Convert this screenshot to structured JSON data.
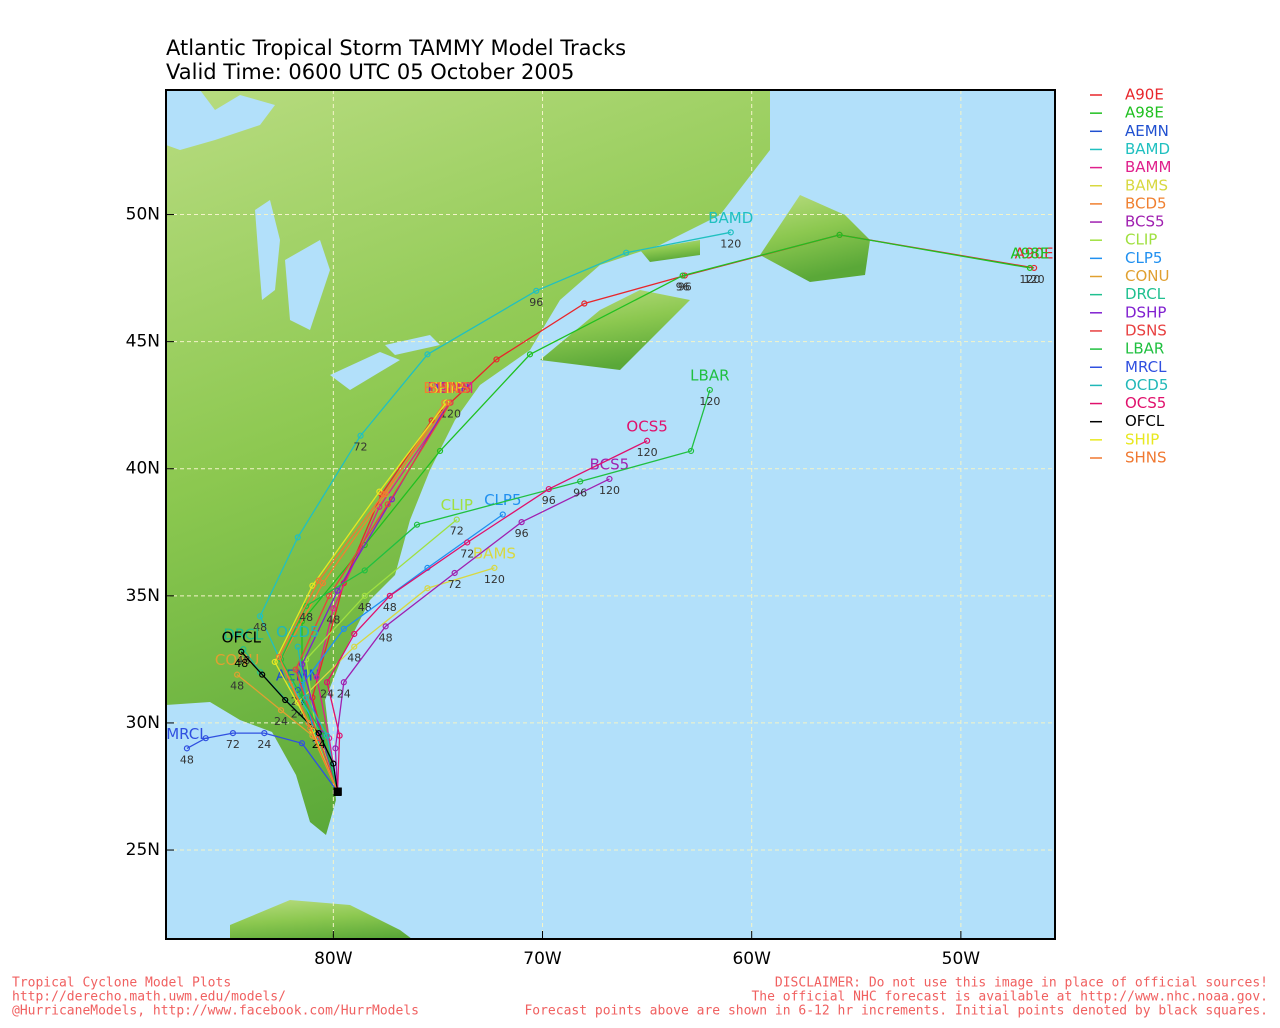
{
  "chart_data": {
    "type": "track",
    "title": "Atlantic Tropical Storm TAMMY Model Tracks",
    "subtitle": "Valid Time: 0600 UTC 05 October 2005",
    "xlim": [
      -88,
      -45.5
    ],
    "ylim": [
      21.5,
      54.9
    ],
    "xticks": [
      {
        "value": -80,
        "label": "80W"
      },
      {
        "value": -70,
        "label": "70W"
      },
      {
        "value": -60,
        "label": "60W"
      },
      {
        "value": -50,
        "label": "50W"
      }
    ],
    "yticks": [
      {
        "value": 25,
        "label": "25N"
      },
      {
        "value": 30,
        "label": "30N"
      },
      {
        "value": 35,
        "label": "35N"
      },
      {
        "value": 40,
        "label": "40N"
      },
      {
        "value": 45,
        "label": "45N"
      },
      {
        "value": 50,
        "label": "50N"
      }
    ],
    "grid": true,
    "legend": "right",
    "series": [
      {
        "name": "A90E",
        "color": "#e8262b",
        "x": [
          -79.8,
          -81.0,
          -79.5,
          -77.7,
          -75.3,
          -72.2,
          -68.0,
          -63.2,
          -55.8,
          -46.5
        ],
        "values": [
          27.3,
          31.0,
          35.5,
          39.0,
          41.9,
          44.3,
          46.5,
          47.6,
          49.2,
          47.9
        ],
        "labels": [
          null,
          null,
          null,
          null,
          null,
          null,
          null,
          96,
          null,
          120
        ]
      },
      {
        "name": "A98E",
        "color": "#20c020",
        "x": [
          -79.8,
          -81.5,
          -81.5,
          -78.5,
          -74.9,
          -70.6,
          -63.3,
          -55.8,
          -46.7
        ],
        "values": [
          27.3,
          31.0,
          34.0,
          37.0,
          40.7,
          44.5,
          47.6,
          49.2,
          47.9
        ],
        "labels": [
          null,
          null,
          null,
          null,
          null,
          null,
          96,
          null,
          120
        ]
      },
      {
        "name": "AEMN",
        "color": "#2050d0",
        "x": [
          -79.8,
          -80.5,
          -81.7
        ],
        "values": [
          27.3,
          29.5,
          31.3
        ],
        "labels": [
          null,
          null,
          24
        ]
      },
      {
        "name": "BAMD",
        "color": "#20c0c0",
        "x": [
          -79.8,
          -80.5,
          -82.0,
          -83.5,
          -81.7,
          -78.7,
          -75.5,
          -70.3,
          -66.0,
          -61.0
        ],
        "values": [
          27.3,
          29.5,
          31.5,
          34.2,
          37.3,
          41.3,
          44.5,
          47.0,
          48.5,
          49.3
        ],
        "labels": [
          null,
          null,
          null,
          48,
          null,
          72,
          null,
          96,
          null,
          120
        ]
      },
      {
        "name": "BAMM",
        "color": "#e0208c",
        "x": [
          -79.8,
          -80.2,
          -80.8,
          -80.0,
          -77.8,
          -74.4
        ],
        "values": [
          27.3,
          29.4,
          31.8,
          34.5,
          38.5,
          42.6
        ],
        "labels": [
          null,
          null,
          null,
          48,
          null,
          120
        ]
      },
      {
        "name": "BAMS",
        "color": "#d8d840",
        "x": [
          -79.8,
          -80.5,
          -81.7,
          -79.0,
          -75.5,
          -72.3
        ],
        "values": [
          27.3,
          29.0,
          30.8,
          33.0,
          35.3,
          36.1
        ],
        "labels": [
          null,
          null,
          24,
          48,
          null,
          120
        ]
      },
      {
        "name": "BCD5",
        "color": "#f08030",
        "x": [
          -79.8,
          -81.2,
          -82.5,
          -80.5,
          -77.5,
          -74.7
        ],
        "values": [
          27.3,
          30.0,
          32.5,
          35.5,
          39.0,
          42.6
        ]
      },
      {
        "name": "BCS5",
        "color": "#a020b0",
        "x": [
          -79.8,
          -79.9,
          -79.5,
          -77.5,
          -74.2,
          -71.0,
          -66.8
        ],
        "values": [
          27.3,
          29.0,
          31.6,
          33.8,
          35.9,
          37.9,
          39.6
        ],
        "labels": [
          null,
          null,
          24,
          48,
          72,
          96,
          120
        ]
      },
      {
        "name": "CLIP",
        "color": "#a0e040",
        "x": [
          -79.8,
          -80.8,
          -81.3,
          -78.5,
          -74.1
        ],
        "values": [
          27.3,
          29.5,
          32.5,
          35.0,
          38.0
        ],
        "labels": [
          null,
          null,
          null,
          48,
          72
        ]
      },
      {
        "name": "CLP5",
        "color": "#2090f0",
        "x": [
          -79.8,
          -80.8,
          -81.5,
          -79.5,
          -75.5,
          -71.9
        ],
        "values": [
          27.3,
          29.3,
          31.5,
          33.7,
          36.1,
          38.2
        ]
      },
      {
        "name": "CONU",
        "color": "#e0a030",
        "x": [
          -79.8,
          -81.0,
          -82.5,
          -84.6
        ],
        "values": [
          27.3,
          29.5,
          30.5,
          31.9
        ],
        "labels": [
          null,
          null,
          24,
          48
        ]
      },
      {
        "name": "DRCL",
        "color": "#20c090",
        "x": [
          -79.8,
          -81.0,
          -83.5,
          -84.3
        ],
        "values": [
          27.3,
          29.8,
          32.0,
          32.9
        ],
        "labels": [
          null,
          null,
          null,
          48
        ]
      },
      {
        "name": "DSHP",
        "color": "#8020d0",
        "x": [
          -79.8,
          -80.6,
          -81.5,
          -79.8,
          -77.2,
          -74.5
        ],
        "values": [
          27.3,
          29.6,
          32.3,
          35.2,
          38.8,
          42.6
        ]
      },
      {
        "name": "DSNS",
        "color": "#e84040",
        "x": [
          -79.8,
          -80.7,
          -81.8,
          -80.2,
          -77.4,
          -74.4
        ],
        "values": [
          27.3,
          29.4,
          32.1,
          35.0,
          38.6,
          42.6
        ]
      },
      {
        "name": "LBAR",
        "color": "#20c040",
        "x": [
          -79.8,
          -80.5,
          -82.5,
          -81.3,
          -78.5,
          -76.0,
          -68.2,
          -62.9,
          -62.0
        ],
        "values": [
          27.3,
          29.5,
          32.5,
          34.6,
          36.0,
          37.8,
          39.5,
          40.7,
          43.1
        ],
        "labels": [
          null,
          null,
          null,
          48,
          null,
          null,
          96,
          null,
          120
        ]
      },
      {
        "name": "MRCL",
        "color": "#3050e0",
        "x": [
          -79.8,
          -81.5,
          -83.3,
          -84.8,
          -86.1,
          -87.0
        ],
        "values": [
          27.3,
          29.2,
          29.6,
          29.6,
          29.4,
          29.0
        ],
        "labels": [
          null,
          null,
          24,
          72,
          null,
          48
        ]
      },
      {
        "name": "OCD5",
        "color": "#20b8b8",
        "x": [
          -79.8,
          -80.3,
          -81.3,
          -81.7
        ],
        "values": [
          27.3,
          29.5,
          31.0,
          33.0
        ]
      },
      {
        "name": "OCS5",
        "color": "#e0106c",
        "x": [
          -79.8,
          -79.7,
          -80.3,
          -79.0,
          -77.3,
          -73.6,
          -69.7,
          -65.0
        ],
        "values": [
          27.3,
          29.5,
          31.6,
          33.5,
          35.0,
          37.1,
          39.2,
          41.1
        ],
        "labels": [
          null,
          null,
          24,
          null,
          48,
          72,
          96,
          120
        ]
      },
      {
        "name": "OFCL",
        "color": "#000000",
        "x": [
          -79.8,
          -80.0,
          -80.7,
          -82.3,
          -83.4,
          -84.4
        ],
        "values": [
          27.3,
          28.4,
          29.6,
          30.9,
          31.9,
          32.8
        ],
        "labels": [
          null,
          null,
          24,
          null,
          null,
          48
        ]
      },
      {
        "name": "SHIP",
        "color": "#e8e820",
        "x": [
          -79.8,
          -81.0,
          -82.8,
          -81.0,
          -77.8,
          -74.6
        ],
        "values": [
          27.3,
          29.7,
          32.4,
          35.4,
          39.1,
          42.6
        ]
      },
      {
        "name": "SHNS",
        "color": "#f07830",
        "x": [
          -79.8,
          -81.1,
          -82.6,
          -80.7,
          -77.6,
          -74.5
        ],
        "values": [
          27.3,
          29.8,
          32.6,
          35.6,
          39.0,
          42.6
        ]
      }
    ],
    "footer_left": [
      "Tropical Cyclone Model Plots",
      "http://derecho.math.uwm.edu/models/",
      "@HurricaneModels, http://www.facebook.com/HurrModels"
    ],
    "footer_right": [
      "DISCLAIMER: Do not use this image in place of official sources!",
      "The official NHC forecast is available at http://www.nhc.noaa.gov.",
      "Forecast points above are shown in 6-12 hr increments. Initial points denoted by black squares."
    ]
  }
}
